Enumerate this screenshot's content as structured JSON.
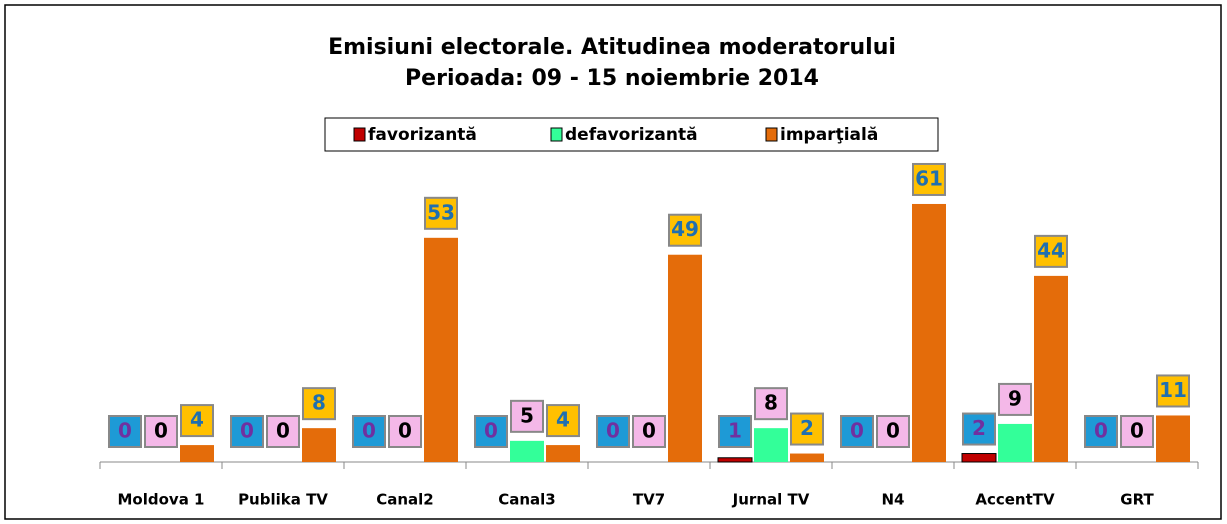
{
  "chart_data": {
    "type": "bar",
    "title": "Emisiuni electorale. Atitudinea moderatorului",
    "subtitle": "Perioada: 09 - 15 noiembrie 2014",
    "categories": [
      "Moldova 1",
      "Publika TV",
      "Canal2",
      "Canal3",
      "TV7",
      "Jurnal TV",
      "N4",
      "AccentTV",
      "GRT"
    ],
    "series": [
      {
        "name": "favorizantă",
        "color": "#c00000",
        "label_box": "#1e9ad6",
        "label_color": "#7030a0",
        "values": [
          0,
          0,
          0,
          0,
          0,
          1,
          0,
          2,
          0
        ]
      },
      {
        "name": "defavorizantă",
        "color": "#33ff99",
        "label_box": "#f4b8e8",
        "label_color": "#000000",
        "values": [
          0,
          0,
          0,
          5,
          0,
          8,
          0,
          9,
          0
        ]
      },
      {
        "name": "imparţială",
        "color": "#e46c0a",
        "label_box": "#ffc000",
        "label_color": "#1f6fb0",
        "values": [
          4,
          8,
          53,
          4,
          49,
          2,
          61,
          44,
          11
        ]
      }
    ],
    "legend": "top"
  }
}
